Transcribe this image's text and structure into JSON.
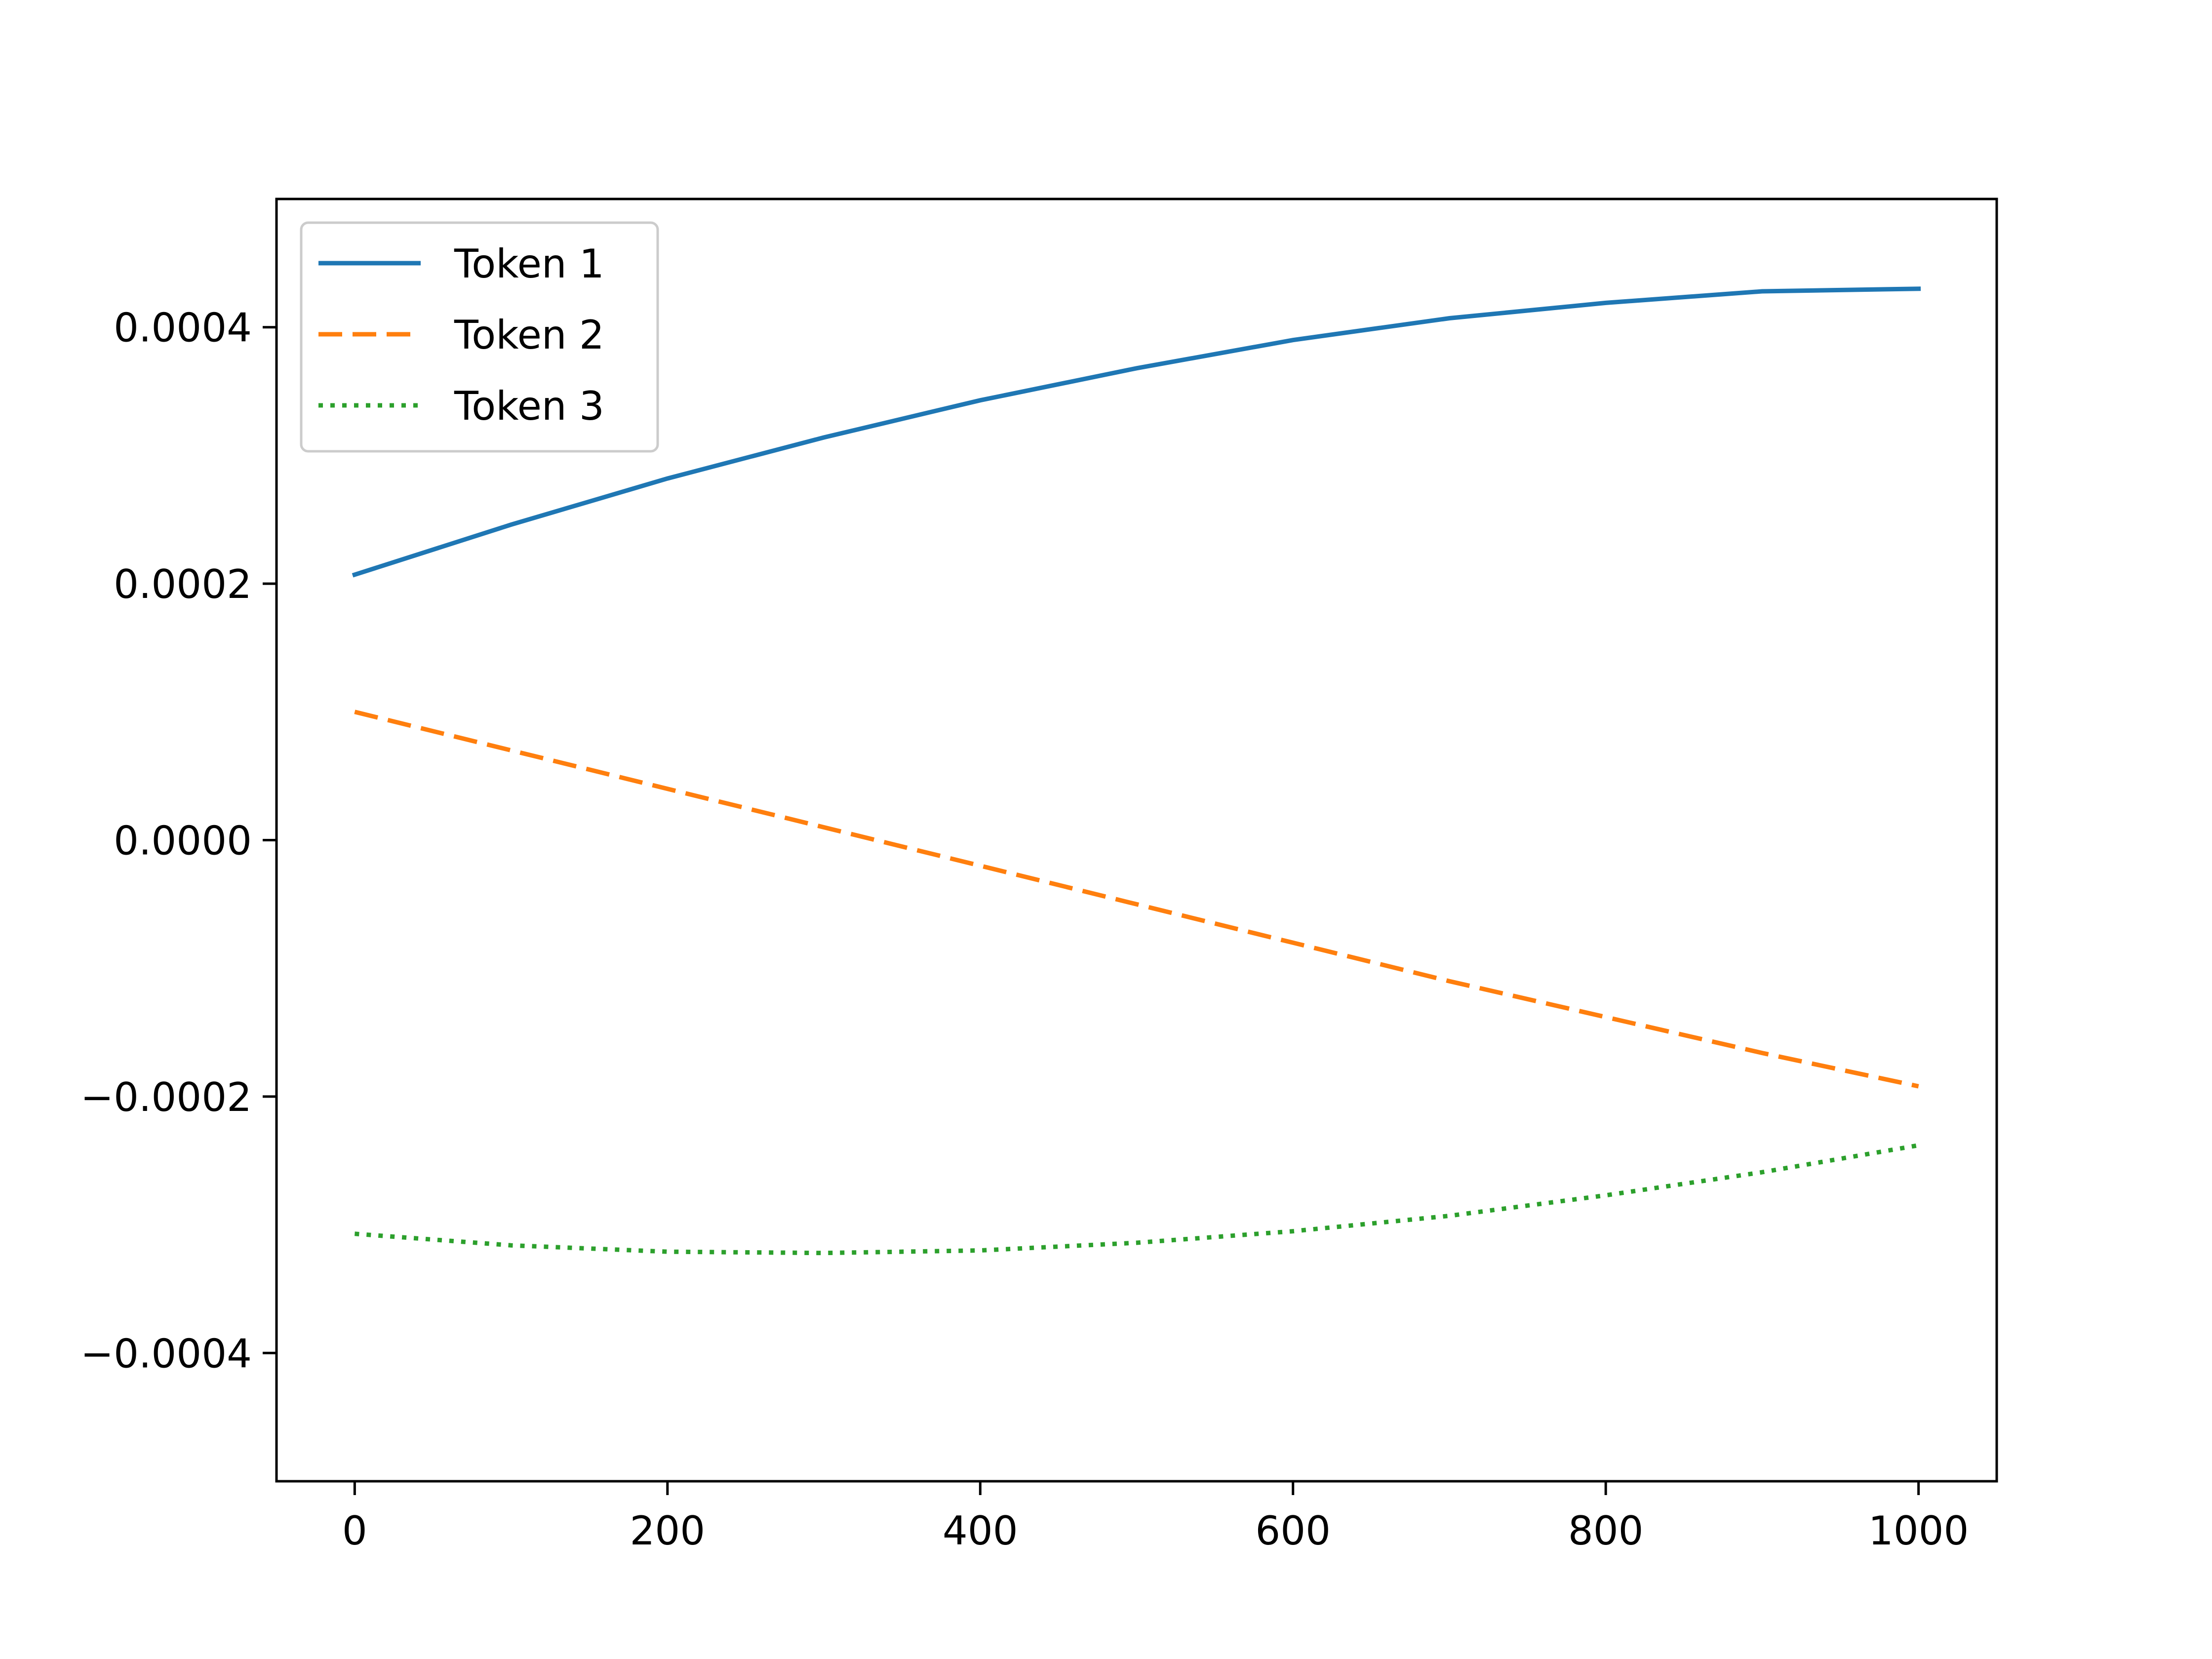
{
  "chart_data": {
    "type": "line",
    "title": "",
    "xlabel": "",
    "ylabel": "",
    "xlim": [
      -50,
      1050
    ],
    "ylim": [
      -0.0005,
      0.0005
    ],
    "x_ticks": [
      0,
      200,
      400,
      600,
      800,
      1000
    ],
    "x_tick_labels": [
      "0",
      "200",
      "400",
      "600",
      "800",
      "1000"
    ],
    "y_ticks": [
      -0.0004,
      -0.0002,
      0.0,
      0.0002,
      0.0004
    ],
    "y_tick_labels": [
      "−0.0004",
      "−0.0002",
      "0.0000",
      "0.0002",
      "0.0004"
    ],
    "grid": false,
    "legend_position": "upper-left",
    "x": [
      0,
      100,
      200,
      300,
      400,
      500,
      600,
      700,
      800,
      900,
      1000
    ],
    "series": [
      {
        "name": "Token 1",
        "color": "#1f77b4",
        "line_style": "solid",
        "values": [
          0.000207,
          0.000246,
          0.000282,
          0.000314,
          0.000343,
          0.000368,
          0.00039,
          0.000407,
          0.000419,
          0.000428,
          0.00043
        ]
      },
      {
        "name": "Token 2",
        "color": "#ff7f0e",
        "line_style": "dashed",
        "values": [
          0.0001,
          7e-05,
          4e-05,
          1e-05,
          -2e-05,
          -5e-05,
          -8e-05,
          -0.00011,
          -0.000138,
          -0.000166,
          -0.000192
        ]
      },
      {
        "name": "Token 3",
        "color": "#2ca02c",
        "line_style": "dotted",
        "values": [
          -0.000307,
          -0.000316,
          -0.000321,
          -0.000322,
          -0.00032,
          -0.000314,
          -0.000305,
          -0.000293,
          -0.000277,
          -0.000259,
          -0.000238
        ]
      }
    ]
  }
}
